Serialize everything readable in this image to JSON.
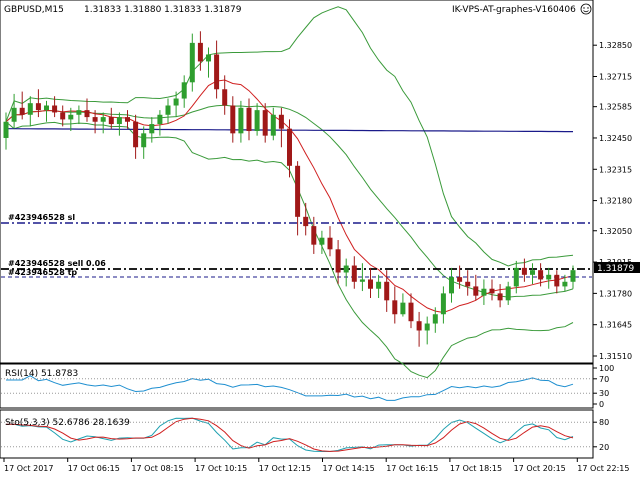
{
  "header": {
    "symbol_tf": "GBPUSD,M15",
    "ohlc": "1.31833 1.31880 1.31833 1.31879",
    "expert_name": "IK-VPS-AT-graphes-V160406"
  },
  "price_axis": {
    "ticks": [
      "1.32850",
      "1.32715",
      "1.32585",
      "1.32450",
      "1.32315",
      "1.32180",
      "1.32050",
      "1.31915",
      "1.31780",
      "1.31645",
      "1.31510"
    ],
    "current_price": "1.31879"
  },
  "time_axis": {
    "labels": [
      "17 Oct 2017",
      "17 Oct 06:15",
      "17 Oct 08:15",
      "17 Oct 10:15",
      "17 Oct 12:15",
      "17 Oct 14:15",
      "17 Oct 16:15",
      "17 Oct 18:15",
      "17 Oct 20:15",
      "17 Oct 22:15"
    ]
  },
  "order_labels": {
    "sl_line": "#423946528 sl",
    "sell_line": "#423946528 sell 0.06",
    "tp_line": "#423946528 tp"
  },
  "rsi": {
    "title": "RSI(14) 51.8783",
    "ticks": [
      "100",
      "70",
      "30",
      "0"
    ]
  },
  "stoch": {
    "title": "Sto(5,3,3) 52.6786 28.1639",
    "ticks": [
      "80",
      "20"
    ]
  },
  "colors": {
    "bull": "#2e9e2e",
    "bear": "#a01818",
    "ma_slow": "#1a1a8a",
    "bands": "#3a9a3a",
    "ma_fast": "#d02020",
    "level_line": "#1a1a8a",
    "rsi_line": "#1e8fd0",
    "stoch_main": "#1ea0b0",
    "stoch_signal": "#d02020",
    "axis_text": "#000000",
    "price_box_bg": "#000000",
    "price_box_fg": "#ffffff"
  },
  "chart_data": {
    "type": "candlestick",
    "title": "GBPUSD,M15",
    "ylim": [
      1.3151,
      1.3295
    ],
    "candles": [
      [
        1.3245,
        1.3256,
        1.324,
        1.3252
      ],
      [
        1.3252,
        1.3264,
        1.3249,
        1.3258
      ],
      [
        1.3258,
        1.3265,
        1.3253,
        1.3255
      ],
      [
        1.3255,
        1.3263,
        1.325,
        1.326
      ],
      [
        1.326,
        1.3266,
        1.3254,
        1.3257
      ],
      [
        1.3257,
        1.3261,
        1.3252,
        1.3259
      ],
      [
        1.3259,
        1.3263,
        1.3254,
        1.3256
      ],
      [
        1.3256,
        1.3259,
        1.325,
        1.3253
      ],
      [
        1.3253,
        1.3258,
        1.3248,
        1.3255
      ],
      [
        1.3255,
        1.3259,
        1.3251,
        1.3257
      ],
      [
        1.3257,
        1.3262,
        1.3252,
        1.3254
      ],
      [
        1.3254,
        1.3257,
        1.3247,
        1.3252
      ],
      [
        1.3252,
        1.3256,
        1.3247,
        1.3254
      ],
      [
        1.3254,
        1.3258,
        1.3249,
        1.3251
      ],
      [
        1.3251,
        1.3256,
        1.3246,
        1.3254
      ],
      [
        1.3254,
        1.3257,
        1.3249,
        1.3252
      ],
      [
        1.3252,
        1.3255,
        1.3236,
        1.3241
      ],
      [
        1.3241,
        1.325,
        1.3236,
        1.3247
      ],
      [
        1.3247,
        1.3254,
        1.3243,
        1.3251
      ],
      [
        1.3251,
        1.3257,
        1.3246,
        1.3255
      ],
      [
        1.3255,
        1.3262,
        1.3251,
        1.3259
      ],
      [
        1.3259,
        1.3265,
        1.3254,
        1.3262
      ],
      [
        1.3262,
        1.3272,
        1.3258,
        1.3269
      ],
      [
        1.3269,
        1.329,
        1.3265,
        1.3286
      ],
      [
        1.3286,
        1.3291,
        1.3274,
        1.3278
      ],
      [
        1.3278,
        1.3284,
        1.3271,
        1.3281
      ],
      [
        1.3281,
        1.3287,
        1.3262,
        1.3266
      ],
      [
        1.3266,
        1.3272,
        1.3255,
        1.3259
      ],
      [
        1.3259,
        1.3263,
        1.3243,
        1.3247
      ],
      [
        1.3247,
        1.3261,
        1.3243,
        1.3258
      ],
      [
        1.3258,
        1.3262,
        1.3244,
        1.3248
      ],
      [
        1.3248,
        1.326,
        1.3246,
        1.3257
      ],
      [
        1.3257,
        1.326,
        1.3243,
        1.3246
      ],
      [
        1.3246,
        1.3258,
        1.3244,
        1.3255
      ],
      [
        1.3255,
        1.3258,
        1.3241,
        1.3249
      ],
      [
        1.3249,
        1.3253,
        1.3228,
        1.3233
      ],
      [
        1.3233,
        1.3235,
        1.3203,
        1.3211
      ],
      [
        1.3211,
        1.3217,
        1.3203,
        1.3207
      ],
      [
        1.3207,
        1.3211,
        1.3195,
        1.3199
      ],
      [
        1.3199,
        1.3205,
        1.3195,
        1.3202
      ],
      [
        1.3202,
        1.3207,
        1.3194,
        1.3197
      ],
      [
        1.3197,
        1.3201,
        1.3182,
        1.3187
      ],
      [
        1.3187,
        1.3193,
        1.3181,
        1.319
      ],
      [
        1.319,
        1.3194,
        1.318,
        1.3183
      ],
      [
        1.3183,
        1.3191,
        1.3179,
        1.3184
      ],
      [
        1.3184,
        1.3189,
        1.3176,
        1.318
      ],
      [
        1.318,
        1.3186,
        1.3176,
        1.3183
      ],
      [
        1.3183,
        1.3188,
        1.317,
        1.3175
      ],
      [
        1.3175,
        1.3181,
        1.3165,
        1.3169
      ],
      [
        1.3169,
        1.3178,
        1.3168,
        1.3174
      ],
      [
        1.3174,
        1.3178,
        1.3163,
        1.3166
      ],
      [
        1.3166,
        1.317,
        1.3155,
        1.3162
      ],
      [
        1.3162,
        1.3168,
        1.3156,
        1.3165
      ],
      [
        1.3165,
        1.3172,
        1.3161,
        1.3169
      ],
      [
        1.3169,
        1.3181,
        1.3165,
        1.3178
      ],
      [
        1.3178,
        1.3189,
        1.3174,
        1.3185
      ],
      [
        1.3185,
        1.319,
        1.318,
        1.3183
      ],
      [
        1.3183,
        1.3188,
        1.3177,
        1.3181
      ],
      [
        1.3181,
        1.3186,
        1.3175,
        1.3177
      ],
      [
        1.3177,
        1.3184,
        1.3173,
        1.318
      ],
      [
        1.318,
        1.3184,
        1.3175,
        1.3178
      ],
      [
        1.3178,
        1.3182,
        1.3172,
        1.3175
      ],
      [
        1.3175,
        1.3183,
        1.3173,
        1.3181
      ],
      [
        1.3181,
        1.3192,
        1.3178,
        1.3189
      ],
      [
        1.3189,
        1.3193,
        1.3183,
        1.3186
      ],
      [
        1.3186,
        1.3191,
        1.3182,
        1.3188
      ],
      [
        1.3188,
        1.3191,
        1.3181,
        1.3184
      ],
      [
        1.3184,
        1.3189,
        1.318,
        1.3186
      ],
      [
        1.3186,
        1.3188,
        1.3178,
        1.3181
      ],
      [
        1.3181,
        1.3186,
        1.3179,
        1.3183
      ],
      [
        1.3183,
        1.319,
        1.318,
        1.3188
      ]
    ]
  }
}
